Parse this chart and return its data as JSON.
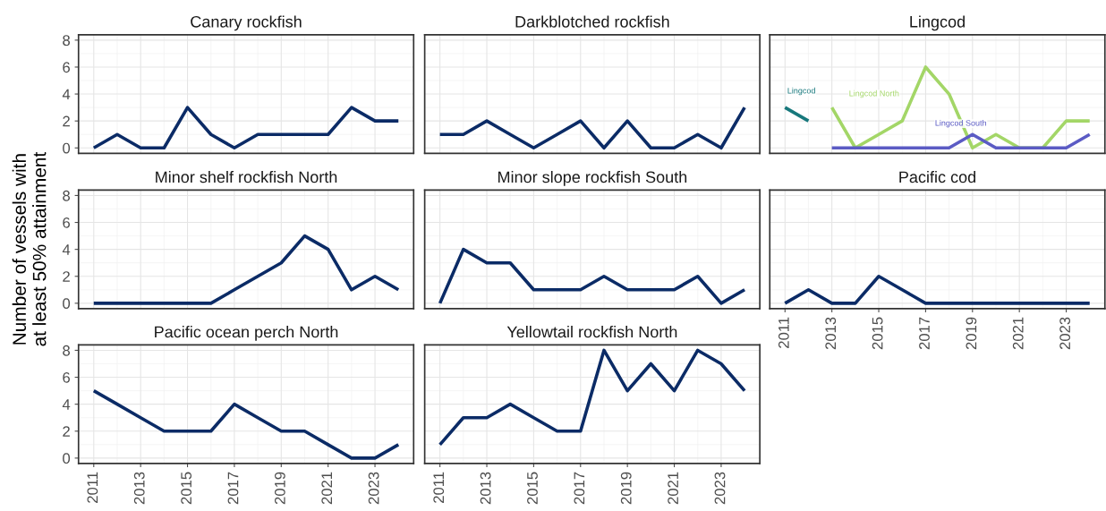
{
  "chart_data": [
    {
      "type": "line",
      "title": "Canary rockfish",
      "x": [
        2011,
        2012,
        2013,
        2014,
        2015,
        2016,
        2017,
        2018,
        2019,
        2020,
        2021,
        2022,
        2023,
        2024
      ],
      "series": [
        {
          "color": "#0b2b66",
          "values": [
            0,
            1,
            0,
            0,
            3,
            1,
            0,
            1,
            1,
            1,
            1,
            3,
            2,
            2
          ]
        }
      ],
      "xlim": [
        2010.35,
        2024.65
      ],
      "xticks": [
        2011,
        2013,
        2015,
        2017,
        2019,
        2021,
        2023
      ],
      "ylim": [
        -0.4,
        8.4
      ],
      "yticks": [
        0,
        2,
        4,
        6,
        8
      ],
      "grid": true,
      "tick_labels": "y"
    },
    {
      "type": "line",
      "title": "Darkblotched rockfish",
      "x": [
        2011,
        2012,
        2013,
        2014,
        2015,
        2016,
        2017,
        2018,
        2019,
        2020,
        2021,
        2022,
        2023,
        2024
      ],
      "series": [
        {
          "color": "#0b2b66",
          "values": [
            1,
            1,
            2,
            1,
            0,
            1,
            2,
            0,
            2,
            0,
            0,
            1,
            0,
            3
          ]
        }
      ],
      "xlim": [
        2010.35,
        2024.65
      ],
      "xticks": [
        2011,
        2013,
        2015,
        2017,
        2019,
        2021,
        2023
      ],
      "ylim": [
        -0.4,
        8.4
      ],
      "yticks": [
        0,
        2,
        4,
        6,
        8
      ],
      "grid": true,
      "tick_labels": false
    },
    {
      "type": "line",
      "title": "Lingcod",
      "series": [
        {
          "name": "Lingcod",
          "color": "#17787c",
          "x": [
            2011,
            2012
          ],
          "values": [
            3,
            2
          ]
        },
        {
          "name": "Lingcod North",
          "color": "#a3d667",
          "x": [
            2013,
            2014,
            2015,
            2016,
            2017,
            2018,
            2019,
            2020,
            2021,
            2022,
            2023,
            2024
          ],
          "values": [
            3,
            0,
            1,
            2,
            6,
            4,
            0,
            1,
            0,
            0,
            2,
            2
          ]
        },
        {
          "name": "Lingcod South",
          "color": "#5b5bc4",
          "x": [
            2013,
            2014,
            2015,
            2016,
            2017,
            2018,
            2019,
            2020,
            2021,
            2022,
            2023,
            2024
          ],
          "values": [
            0,
            0,
            0,
            0,
            0,
            0,
            1,
            0,
            0,
            0,
            0,
            1
          ]
        }
      ],
      "xlim": [
        2010.35,
        2024.65
      ],
      "xticks": [
        2011,
        2013,
        2015,
        2017,
        2019,
        2021,
        2023
      ],
      "ylim": [
        -0.4,
        8.4
      ],
      "yticks": [
        0,
        2,
        4,
        6,
        8
      ],
      "grid": true,
      "tick_labels": false
    },
    {
      "type": "line",
      "title": "Minor shelf rockfish North",
      "ylabel": "Number of vessels with\nat least 50% attainment",
      "x": [
        2011,
        2012,
        2013,
        2014,
        2015,
        2016,
        2017,
        2018,
        2019,
        2020,
        2021,
        2022,
        2023,
        2024
      ],
      "series": [
        {
          "color": "#0b2b66",
          "values": [
            0,
            0,
            0,
            0,
            0,
            0,
            1,
            2,
            3,
            5,
            4,
            1,
            2,
            1
          ]
        }
      ],
      "xlim": [
        2010.35,
        2024.65
      ],
      "xticks": [
        2011,
        2013,
        2015,
        2017,
        2019,
        2021,
        2023
      ],
      "ylim": [
        -0.4,
        8.4
      ],
      "yticks": [
        0,
        2,
        4,
        6,
        8
      ],
      "grid": true,
      "tick_labels": "y"
    },
    {
      "type": "line",
      "title": "Minor slope rockfish South",
      "x": [
        2011,
        2012,
        2013,
        2014,
        2015,
        2016,
        2017,
        2018,
        2019,
        2020,
        2021,
        2022,
        2023,
        2024
      ],
      "series": [
        {
          "color": "#0b2b66",
          "values": [
            0,
            4,
            3,
            3,
            1,
            1,
            1,
            2,
            1,
            1,
            1,
            2,
            0,
            1
          ]
        }
      ],
      "xlim": [
        2010.35,
        2024.65
      ],
      "xticks": [
        2011,
        2013,
        2015,
        2017,
        2019,
        2021,
        2023
      ],
      "ylim": [
        -0.4,
        8.4
      ],
      "yticks": [
        0,
        2,
        4,
        6,
        8
      ],
      "grid": true,
      "tick_labels": false
    },
    {
      "type": "line",
      "title": "Pacific cod",
      "x": [
        2011,
        2012,
        2013,
        2014,
        2015,
        2016,
        2017,
        2018,
        2019,
        2020,
        2021,
        2022,
        2023,
        2024
      ],
      "series": [
        {
          "color": "#0b2b66",
          "values": [
            0,
            1,
            0,
            0,
            2,
            1,
            0,
            0,
            0,
            0,
            0,
            0,
            0,
            0
          ]
        }
      ],
      "xlim": [
        2010.35,
        2024.65
      ],
      "xticks": [
        2011,
        2013,
        2015,
        2017,
        2019,
        2021,
        2023
      ],
      "ylim": [
        -0.4,
        8.4
      ],
      "yticks": [
        0,
        2,
        4,
        6,
        8
      ],
      "grid": true,
      "tick_labels": "x"
    },
    {
      "type": "line",
      "title": "Pacific ocean perch North",
      "x": [
        2011,
        2012,
        2013,
        2014,
        2015,
        2016,
        2017,
        2018,
        2019,
        2020,
        2021,
        2022,
        2023,
        2024
      ],
      "series": [
        {
          "color": "#0b2b66",
          "values": [
            5,
            4,
            3,
            2,
            2,
            2,
            4,
            3,
            2,
            2,
            1,
            0,
            0,
            1
          ]
        }
      ],
      "xlim": [
        2010.35,
        2024.65
      ],
      "xticks": [
        2011,
        2013,
        2015,
        2017,
        2019,
        2021,
        2023
      ],
      "ylim": [
        -0.4,
        8.4
      ],
      "yticks": [
        0,
        2,
        4,
        6,
        8
      ],
      "grid": true
    },
    {
      "type": "line",
      "title": "Yellowtail rockfish North",
      "x": [
        2011,
        2012,
        2013,
        2014,
        2015,
        2016,
        2017,
        2018,
        2019,
        2020,
        2021,
        2022,
        2023,
        2024
      ],
      "series": [
        {
          "color": "#0b2b66",
          "values": [
            1,
            3,
            3,
            4,
            3,
            2,
            2,
            8,
            5,
            7,
            5,
            8,
            7,
            5
          ]
        }
      ],
      "xlim": [
        2010.35,
        2024.65
      ],
      "xticks": [
        2011,
        2013,
        2015,
        2017,
        2019,
        2021,
        2023
      ],
      "ylim": [
        -0.4,
        8.4
      ],
      "yticks": [
        0,
        2,
        4,
        6,
        8
      ],
      "grid": true,
      "tick_labels": "x"
    }
  ]
}
